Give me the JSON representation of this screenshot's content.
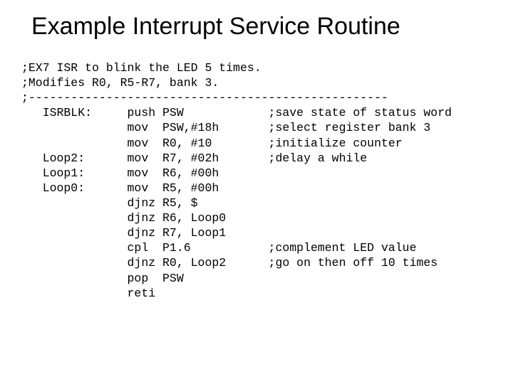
{
  "title_fontsize": 34,
  "code_fontsize": 16.5,
  "title_color": "#000000",
  "code_color": "#000000",
  "bg_color": "#ffffff",
  "title": "Example Interrupt Service Routine",
  "code": ";EX7 ISR to blink the LED 5 times.\n;Modifies R0, R5-R7, bank 3.\n;---------------------------------------------------\n   ISRBLK:     push PSW            ;save state of status word\n               mov  PSW,#18h       ;select register bank 3\n               mov  R0, #10        ;initialize counter\n   Loop2:      mov  R7, #02h       ;delay a while\n   Loop1:      mov  R6, #00h\n   Loop0:      mov  R5, #00h\n               djnz R5, $\n               djnz R6, Loop0\n               djnz R7, Loop1\n               cpl  P1.6           ;complement LED value\n               djnz R0, Loop2      ;go on then off 10 times\n               pop  PSW\n               reti"
}
